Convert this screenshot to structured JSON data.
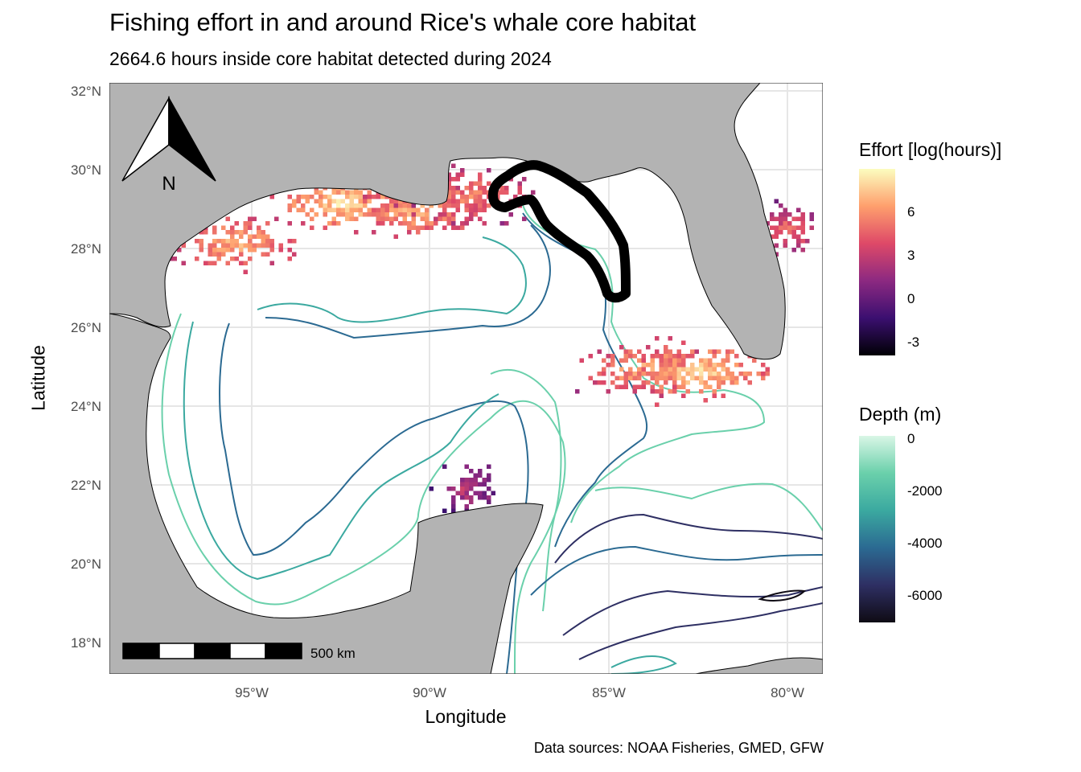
{
  "title": "Fishing effort in and around Rice's whale core habitat",
  "subtitle": "2664.6 hours inside core habitat detected during 2024",
  "caption": "Data sources: NOAA Fisheries, GMED, GFW",
  "axes": {
    "xlabel": "Longitude",
    "ylabel": "Latitude",
    "xticks": [
      "95°W",
      "90°W",
      "85°W",
      "80°W"
    ],
    "yticks": [
      "32°N",
      "30°N",
      "28°N",
      "26°N",
      "24°N",
      "22°N",
      "20°N",
      "18°N"
    ]
  },
  "north_arrow": {
    "label": "N"
  },
  "scale_bar": {
    "label": "500 km"
  },
  "legend_effort": {
    "title": "Effort [log(hours)]",
    "labels": [
      "6",
      "3",
      "0",
      "-3"
    ]
  },
  "legend_depth": {
    "title": "Depth (m)",
    "labels": [
      "0",
      "-2000",
      "-4000",
      "-6000"
    ]
  },
  "colors": {
    "land": "#b3b3b3",
    "grid": "#e6e6e6",
    "habitat_outline": "#000000",
    "effort_scale": [
      "#000004",
      "#3b0f70",
      "#8c2981",
      "#de4968",
      "#fe9f6d",
      "#fcfdbf"
    ],
    "depth_scale": [
      "#0f0b14",
      "#2e2f63",
      "#2b6a92",
      "#3ba9a0",
      "#6ad0ab",
      "#d9f6e6"
    ]
  },
  "chart_data": {
    "type": "heatmap",
    "title": "Fishing effort in and around Rice's whale core habitat",
    "subtitle": "2664.6 hours inside core habitat detected during 2024",
    "xlabel": "Longitude",
    "ylabel": "Latitude",
    "xlim": [
      -99,
      -79
    ],
    "ylim": [
      17.2,
      32.2
    ],
    "effort_range": [
      -4,
      9
    ],
    "depth_range": [
      -7000,
      0
    ],
    "scale_bar_km": 500,
    "effort_hotspots": [
      {
        "lon": -95.5,
        "lat": 28.2,
        "effort": 7
      },
      {
        "lon": -92.5,
        "lat": 29.2,
        "effort": 8
      },
      {
        "lon": -90.5,
        "lat": 29.0,
        "effort": 7
      },
      {
        "lon": -89.0,
        "lat": 29.4,
        "effort": 6
      },
      {
        "lon": -84.0,
        "lat": 25.0,
        "effort": 7
      },
      {
        "lon": -82.5,
        "lat": 24.9,
        "effort": 8
      },
      {
        "lon": -80.0,
        "lat": 28.5,
        "effort": 5
      },
      {
        "lon": -89.0,
        "lat": 22.0,
        "effort": 3
      }
    ]
  }
}
